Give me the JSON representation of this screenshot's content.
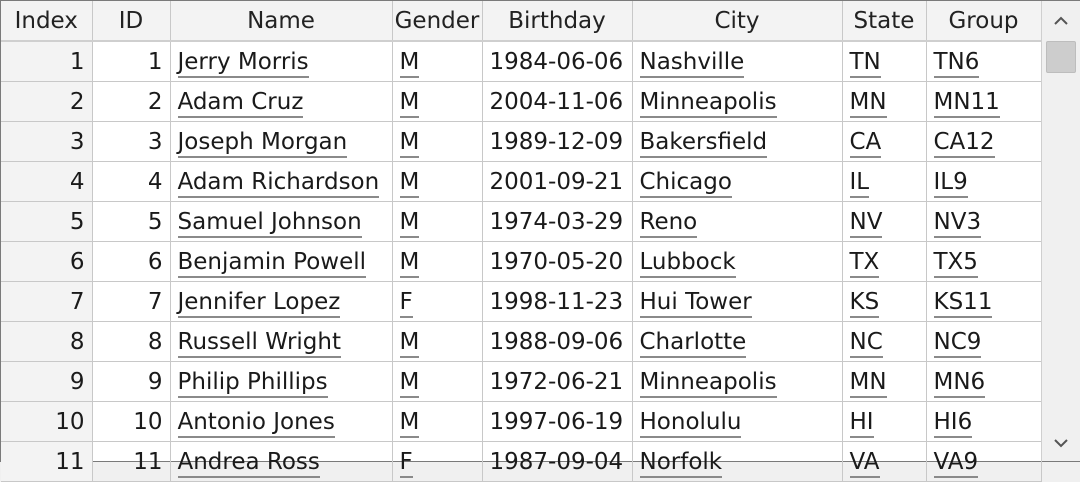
{
  "table": {
    "columns": [
      "Index",
      "ID",
      "Name",
      "Gender",
      "Birthday",
      "City",
      "State",
      "Group"
    ],
    "rows": [
      [
        "1",
        "1",
        "Jerry Morris",
        "M",
        "1984-06-06",
        "Nashville",
        "TN",
        "TN6"
      ],
      [
        "2",
        "2",
        "Adam Cruz",
        "M",
        "2004-11-06",
        "Minneapolis",
        "MN",
        "MN11"
      ],
      [
        "3",
        "3",
        "Joseph Morgan",
        "M",
        "1989-12-09",
        "Bakersfield",
        "CA",
        "CA12"
      ],
      [
        "4",
        "4",
        "Adam Richardson",
        "M",
        "2001-09-21",
        "Chicago",
        "IL",
        "IL9"
      ],
      [
        "5",
        "5",
        "Samuel Johnson",
        "M",
        "1974-03-29",
        "Reno",
        "NV",
        "NV3"
      ],
      [
        "6",
        "6",
        "Benjamin Powell",
        "M",
        "1970-05-20",
        "Lubbock",
        "TX",
        "TX5"
      ],
      [
        "7",
        "7",
        "Jennifer Lopez",
        "F",
        "1998-11-23",
        "Hui Tower",
        "KS",
        "KS11"
      ],
      [
        "8",
        "8",
        "Russell Wright",
        "M",
        "1988-09-06",
        "Charlotte",
        "NC",
        "NC9"
      ],
      [
        "9",
        "9",
        "Philip Phillips",
        "M",
        "1972-06-21",
        "Minneapolis",
        "MN",
        "MN6"
      ],
      [
        "10",
        "10",
        "Antonio Jones",
        "M",
        "1997-06-19",
        "Honolulu",
        "HI",
        "HI6"
      ],
      [
        "11",
        "11",
        "Andrea Ross",
        "F",
        "1987-09-04",
        "Norfolk",
        "VA",
        "VA9"
      ]
    ]
  },
  "scrollbar": {
    "up_icon": "chevron-up-icon",
    "down_icon": "chevron-down-icon"
  },
  "colors": {
    "id_text": "#0a10d8",
    "header_bg": "#f3f3f3",
    "grid_line": "#c8c8c8"
  }
}
